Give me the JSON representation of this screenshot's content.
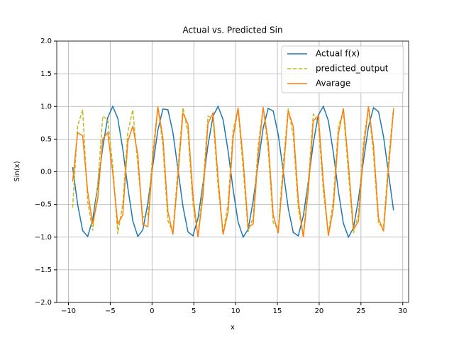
{
  "chart_data": {
    "type": "line",
    "title": "Actual vs. Predicted Sin",
    "x_label": "x",
    "y_label": "Sin(x)",
    "x": [
      -9.5,
      -8.9,
      -8.3,
      -7.7,
      -7.1,
      -6.5,
      -5.9,
      -5.3,
      -4.7,
      -4.1,
      -3.5,
      -2.9,
      -2.3,
      -1.7,
      -1.1,
      -0.5,
      0.1,
      0.7,
      1.3,
      1.9,
      2.5,
      3.1,
      3.7,
      4.3,
      4.9,
      5.5,
      6.1,
      6.7,
      7.3,
      7.9,
      8.5,
      9.1,
      9.7,
      10.3,
      10.9,
      11.5,
      12.1,
      12.7,
      13.3,
      13.9,
      14.5,
      15.1,
      15.7,
      16.3,
      16.9,
      17.5,
      18.1,
      18.7,
      19.3,
      19.9,
      20.5,
      21.1,
      21.7,
      22.3,
      22.9,
      23.5,
      24.1,
      24.7,
      25.3,
      25.9,
      26.5,
      27.1,
      27.7,
      28.3,
      28.9
    ],
    "series": [
      {
        "name": "Actual f(x)",
        "color": "#1f77b4",
        "linestyle": "solid",
        "values": [
          0.07,
          -0.5,
          -0.9,
          -0.99,
          -0.73,
          -0.22,
          0.37,
          0.83,
          1.0,
          0.82,
          0.35,
          -0.24,
          -0.75,
          -0.99,
          -0.89,
          -0.48,
          0.1,
          0.64,
          0.96,
          0.95,
          0.6,
          0.04,
          -0.53,
          -0.92,
          -0.98,
          -0.71,
          -0.18,
          0.41,
          0.85,
          1.0,
          0.8,
          0.32,
          -0.27,
          -0.77,
          -1.0,
          -0.88,
          -0.45,
          0.13,
          0.67,
          0.97,
          0.93,
          0.57,
          0.01,
          -0.56,
          -0.93,
          -0.98,
          -0.68,
          -0.15,
          0.44,
          0.87,
          1.0,
          0.78,
          0.29,
          -0.3,
          -0.79,
          -1.0,
          -0.86,
          -0.42,
          0.17,
          0.69,
          0.98,
          0.92,
          0.54,
          -0.03,
          -0.59
        ]
      },
      {
        "name": "predicted_output",
        "color": "#bcbd22",
        "linestyle": "dashed",
        "values": [
          -0.55,
          0.7,
          0.95,
          -0.45,
          -0.9,
          -0.2,
          0.85,
          0.8,
          0.1,
          -0.95,
          -0.5,
          0.6,
          0.95,
          0.1,
          -0.7,
          -0.65,
          0.3,
          1.0,
          0.4,
          -0.75,
          -0.93,
          0.05,
          0.98,
          0.6,
          -0.5,
          -0.97,
          -0.22,
          0.85,
          0.82,
          -0.22,
          -0.95,
          -0.48,
          0.64,
          0.96,
          0.05,
          -0.92,
          -0.7,
          0.4,
          0.98,
          0.33,
          -0.78,
          -0.88,
          0.12,
          0.97,
          0.55,
          -0.56,
          -0.98,
          -0.15,
          0.88,
          0.75,
          -0.3,
          -0.96,
          -0.42,
          0.7,
          0.92,
          -0.02,
          -0.94,
          -0.65,
          0.46,
          0.99,
          0.27,
          -0.8,
          -0.85,
          0.18,
          0.98
        ]
      },
      {
        "name": "Avarage",
        "color": "#ff7f0e",
        "linestyle": "solid",
        "values": [
          -0.15,
          0.6,
          0.55,
          -0.3,
          -0.8,
          -0.42,
          0.5,
          0.6,
          -0.02,
          -0.8,
          -0.66,
          0.46,
          0.7,
          0.26,
          -0.81,
          -0.84,
          0.2,
          0.99,
          0.52,
          -0.61,
          -0.96,
          -0.08,
          0.9,
          0.73,
          -0.37,
          -1.0,
          -0.36,
          0.74,
          0.9,
          -0.09,
          -0.96,
          -0.61,
          0.52,
          0.98,
          0.19,
          -0.85,
          -0.8,
          0.26,
          0.99,
          0.46,
          -0.66,
          -0.94,
          -0.02,
          0.93,
          0.69,
          -0.43,
          -1.0,
          -0.29,
          0.78,
          0.86,
          -0.16,
          -0.98,
          -0.55,
          0.58,
          0.97,
          0.12,
          -0.88,
          -0.76,
          0.33,
          1.0,
          0.4,
          -0.71,
          -0.91,
          0.05,
          0.95
        ]
      }
    ],
    "xlim": [
      -11.4,
      30.7
    ],
    "ylim": [
      -2,
      2
    ],
    "xticks": [
      {
        "value": -10,
        "label": "−10"
      },
      {
        "value": -5,
        "label": "−5"
      },
      0,
      5,
      10,
      15,
      20,
      25,
      30
    ],
    "yticks": [
      {
        "value": -2,
        "label": "−2.0"
      },
      {
        "value": -1.5,
        "label": "−1.5"
      },
      {
        "value": -1,
        "label": "−1.0"
      },
      {
        "value": -0.5,
        "label": "−0.5"
      },
      {
        "value": 0,
        "label": "0.0"
      },
      {
        "value": 0.5,
        "label": "0.5"
      },
      {
        "value": 1,
        "label": "1.0"
      },
      {
        "value": 1.5,
        "label": "1.5"
      },
      {
        "value": 2,
        "label": "2.0"
      }
    ],
    "grid": true,
    "legend": "upper right"
  }
}
